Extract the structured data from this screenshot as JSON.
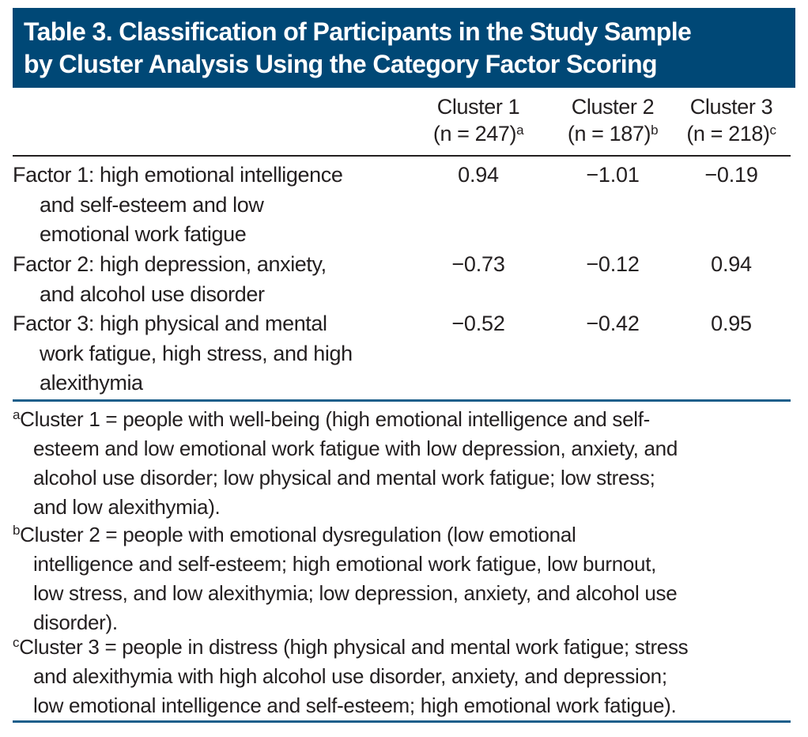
{
  "title": {
    "lines": [
      "Table 3. Classification of Participants in the Study Sample",
      "by Cluster Analysis Using the Category Factor Scoring"
    ]
  },
  "columns": [
    {
      "label": "Cluster 1",
      "n": "(n = 247)",
      "note": "a"
    },
    {
      "label": "Cluster 2",
      "n": "(n = 187)",
      "note": "b"
    },
    {
      "label": "Cluster 3",
      "n": "(n = 218)",
      "note": "c"
    }
  ],
  "rows": [
    {
      "lines": [
        "Factor 1: high emotional intelligence",
        "and self-esteem and low",
        "emotional work fatigue"
      ],
      "values": [
        "0.94",
        "−1.01",
        "−0.19"
      ]
    },
    {
      "lines": [
        "Factor 2: high depression, anxiety,",
        "and alcohol use disorder"
      ],
      "values": [
        "−0.73",
        "−0.12",
        "0.94"
      ]
    },
    {
      "lines": [
        "Factor 3: high physical and mental",
        "work fatigue, high stress, and high",
        "alexithymia"
      ],
      "values": [
        "−0.52",
        "−0.42",
        "0.95"
      ]
    }
  ],
  "footnotes": [
    {
      "mark": "a",
      "lines": [
        "Cluster 1 = people with well-being (high emotional intelligence and self-",
        "esteem and low emotional work fatigue with low depression, anxiety, and",
        "alcohol use disorder; low physical and mental work fatigue; low stress;",
        "and low alexithymia)."
      ]
    },
    {
      "mark": "b",
      "lines": [
        "Cluster 2 = people with emotional dysregulation (low emotional",
        "intelligence and self-esteem; high emotional work fatigue, low burnout,",
        "low stress, and low alexithymia; low depression, anxiety, and alcohol use",
        "disorder)."
      ]
    },
    {
      "mark": "c",
      "lines": [
        "Cluster 3 = people in distress (high physical and mental work fatigue; stress",
        "and alexithymia with high alcohol use disorder, anxiety, and depression;",
        "low emotional intelligence and self-esteem; high emotional work fatigue)."
      ]
    }
  ],
  "colors": {
    "title_bar": "#004876",
    "rule": "#1d5f8b",
    "text": "#231f20"
  }
}
